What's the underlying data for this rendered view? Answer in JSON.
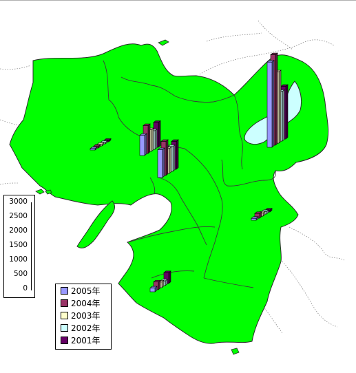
{
  "chart_data": {
    "type": "bar",
    "title": "",
    "xlabel": "",
    "ylabel": "",
    "ylim": [
      0,
      3000
    ],
    "scale_ticks": [
      "3000",
      "2500",
      "2000",
      "1500",
      "1000",
      "500",
      "0"
    ],
    "series": [
      {
        "name": "2005年",
        "color": "#9999ff"
      },
      {
        "name": "2004年",
        "color": "#993366"
      },
      {
        "name": "2003年",
        "color": "#ffffcc"
      },
      {
        "name": "2002年",
        "color": "#ccffff"
      },
      {
        "name": "2001年",
        "color": "#660066"
      }
    ],
    "groups": [
      {
        "values": [
          2750,
          2920,
          2300,
          1600,
          1700
        ]
      },
      {
        "values": [
          650,
          900,
          700,
          600,
          800
        ]
      },
      {
        "values": [
          900,
          1100,
          800,
          800,
          900
        ]
      },
      {
        "values": [
          60,
          150,
          100,
          80,
          60
        ]
      },
      {
        "values": [
          120,
          250,
          180,
          150,
          350
        ]
      },
      {
        "values": [
          40,
          60,
          50,
          40,
          30
        ]
      }
    ]
  },
  "colors": {
    "land": "#00ff00",
    "lake": "#ccffff",
    "border": "#3a3a3a"
  }
}
